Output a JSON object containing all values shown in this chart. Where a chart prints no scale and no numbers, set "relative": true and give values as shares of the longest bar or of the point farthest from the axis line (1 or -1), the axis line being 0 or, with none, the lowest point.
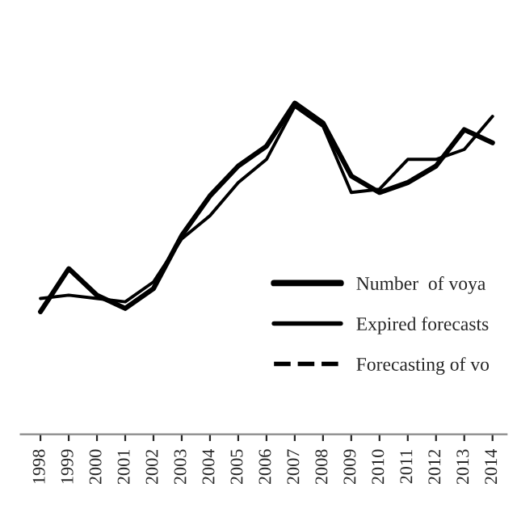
{
  "chart_data": {
    "type": "line",
    "relative": true,
    "categories": [
      "1998",
      "1999",
      "2000",
      "2001",
      "2002",
      "2003",
      "2004",
      "2005",
      "2006",
      "2007",
      "2008",
      "2009",
      "2010",
      "2011",
      "2012",
      "2013",
      "2014"
    ],
    "series": [
      {
        "name": "Number  of voya",
        "color": "#000000",
        "line_style": "solid",
        "values": [
          0.37,
          0.5,
          0.42,
          0.38,
          0.44,
          0.6,
          0.72,
          0.81,
          0.87,
          1.0,
          0.94,
          0.78,
          0.73,
          0.76,
          0.81,
          0.92,
          0.88
        ]
      },
      {
        "name": "Expired forecasts",
        "color": "#000000",
        "line_style": "solid",
        "values": [
          0.41,
          0.42,
          0.41,
          0.4,
          0.46,
          0.59,
          0.66,
          0.76,
          0.83,
          0.99,
          0.93,
          0.73,
          0.74,
          0.83,
          0.83,
          0.86,
          0.96
        ]
      },
      {
        "name": "Forecasting of vo",
        "color": "#000000",
        "line_style": "dashed",
        "values": [
          null,
          null,
          null,
          null,
          null,
          null,
          null,
          null,
          null,
          null,
          null,
          null,
          null,
          null,
          null,
          null,
          null
        ]
      }
    ],
    "legend": "right",
    "tick_labels": "x",
    "grid": false
  }
}
